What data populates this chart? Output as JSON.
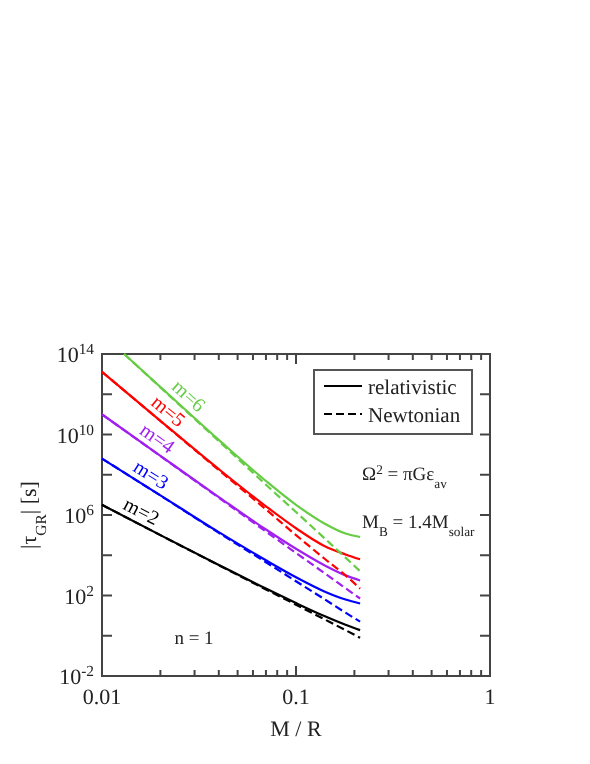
{
  "chart_data": {
    "type": "line",
    "xlabel": "M / R",
    "ylabel": "|τ$_{GR}$| [s]",
    "log": "xy",
    "grid": false,
    "xlim": [
      0.01,
      1
    ],
    "ylim": [
      0.01,
      100000000000000.0
    ],
    "xticks": [
      {
        "value": 0.01,
        "label": "0.01"
      },
      {
        "value": 0.02,
        "label": null
      },
      {
        "value": 0.03,
        "label": null
      },
      {
        "value": 0.04,
        "label": null
      },
      {
        "value": 0.05,
        "label": null
      },
      {
        "value": 0.06,
        "label": null
      },
      {
        "value": 0.07,
        "label": null
      },
      {
        "value": 0.08,
        "label": null
      },
      {
        "value": 0.09,
        "label": null
      },
      {
        "value": 0.1,
        "label": "0.1"
      },
      {
        "value": 0.2,
        "label": null
      },
      {
        "value": 0.3,
        "label": null
      },
      {
        "value": 0.4,
        "label": null
      },
      {
        "value": 0.5,
        "label": null
      },
      {
        "value": 0.6,
        "label": null
      },
      {
        "value": 0.7,
        "label": null
      },
      {
        "value": 0.8,
        "label": null
      },
      {
        "value": 0.9,
        "label": null
      },
      {
        "value": 1,
        "label": "1"
      }
    ],
    "yticks": [
      {
        "value": 0.01,
        "label": "10$^{-2}$"
      },
      {
        "value": 1,
        "label": null
      },
      {
        "value": 100,
        "label": "10$^{2}$"
      },
      {
        "value": 10000.0,
        "label": null
      },
      {
        "value": 1000000.0,
        "label": "10$^{6}$"
      },
      {
        "value": 100000000.0,
        "label": null
      },
      {
        "value": 10000000000.0,
        "label": "10$^{10}$"
      },
      {
        "value": 1000000000000.0,
        "label": null
      },
      {
        "value": 100000000000000.0,
        "label": "10$^{14}$"
      }
    ],
    "series": [
      {
        "name": "m=2",
        "color": "#000000",
        "line_style": "solid",
        "x": [
          0.01,
          0.02,
          0.04,
          0.07,
          0.1,
          0.14,
          0.18,
          0.214
        ],
        "values": [
          3200000.0,
          100000.0,
          3300,
          220,
          42,
          9.5,
          3.5,
          1.9
        ]
      },
      {
        "color": "#000000",
        "line_style": "dashed",
        "x": [
          0.01,
          0.02,
          0.04,
          0.07,
          0.1,
          0.14,
          0.18,
          0.214
        ],
        "values": [
          3200000.0,
          100000.0,
          3200,
          200,
          35,
          6.6,
          1.9,
          0.79
        ]
      },
      {
        "name": "m=3",
        "color": "#0000ff",
        "line_style": "solid",
        "x": [
          0.01,
          0.02,
          0.04,
          0.07,
          0.1,
          0.14,
          0.18,
          0.214
        ],
        "values": [
          630000000.0,
          9500000.0,
          140000.0,
          5600,
          810,
          160,
          63,
          40
        ]
      },
      {
        "color": "#0000ff",
        "line_style": "dashed",
        "x": [
          0.01,
          0.02,
          0.04,
          0.07,
          0.1,
          0.14,
          0.18,
          0.214
        ],
        "values": [
          630000000.0,
          9300000.0,
          130000.0,
          4500,
          510,
          66,
          14,
          5
        ]
      },
      {
        "name": "m=4",
        "color": "#a020f0",
        "line_style": "solid",
        "x": [
          0.01,
          0.02,
          0.04,
          0.07,
          0.1,
          0.14,
          0.18,
          0.214
        ],
        "values": [
          100000000000.0,
          870000000.0,
          7800000.0,
          190000.0,
          21000,
          3200,
          1000,
          560
        ]
      },
      {
        "color": "#a020f0",
        "line_style": "dashed",
        "x": [
          0.01,
          0.02,
          0.04,
          0.07,
          0.1,
          0.14,
          0.18,
          0.214
        ],
        "values": [
          100000000000.0,
          850000000.0,
          7200000.0,
          150000.0,
          13000,
          1300,
          230,
          71
        ]
      },
      {
        "name": "m=5",
        "color": "#ff0000",
        "line_style": "solid",
        "x": [
          0.01,
          0.02,
          0.04,
          0.07,
          0.1,
          0.14,
          0.18,
          0.214
        ],
        "values": [
          13000000000000.0,
          48000000000.0,
          190000000.0,
          2700000.0,
          220000.0,
          29000,
          11000,
          6300
        ]
      },
      {
        "color": "#ff0000",
        "line_style": "dashed",
        "x": [
          0.01,
          0.02,
          0.04,
          0.07,
          0.1,
          0.14,
          0.18,
          0.214
        ],
        "values": [
          13000000000000.0,
          47000000000.0,
          170000000.0,
          1900000.0,
          100000.0,
          6900,
          1000,
          220
        ]
      },
      {
        "name": "m=6",
        "color": "#66cc44",
        "line_style": "solid",
        "x": [
          0.013,
          0.02,
          0.04,
          0.07,
          0.1,
          0.14,
          0.18,
          0.214
        ],
        "values": [
          100000000000000.0,
          2300000000000.0,
          5400000000.0,
          49000000.0,
          3200000.0,
          380000.0,
          120000.0,
          81000
        ]
      },
      {
        "color": "#66cc44",
        "line_style": "dashed",
        "x": [
          0.013,
          0.02,
          0.04,
          0.07,
          0.1,
          0.14,
          0.18,
          0.214
        ],
        "values": [
          100000000000000.0,
          2200000000000.0,
          4700000000.0,
          32000000.0,
          1400000.0,
          71000,
          7600,
          1600
        ]
      }
    ],
    "annotations": [
      "relativistic",
      "Newtonian",
      "Ω$^{2}$ = πGε$_{av}$",
      "M$_{B}$ = 1.4M$_{solar}$",
      "n = 1"
    ]
  }
}
